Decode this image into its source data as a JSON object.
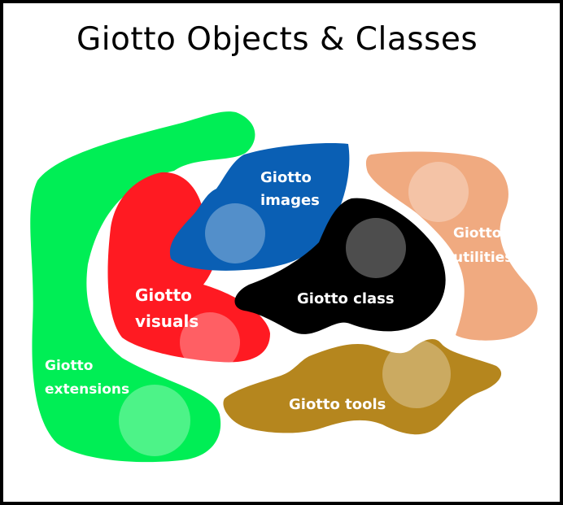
{
  "title": "Giotto Objects & Classes",
  "regions": {
    "extensions": {
      "line1": "Giotto",
      "line2": "extensions",
      "color": "#00ee55"
    },
    "visuals": {
      "line1": "Giotto",
      "line2": "visuals",
      "color": "#ff1a22"
    },
    "images": {
      "line1": "Giotto",
      "line2": "images",
      "color": "#0a5fb4"
    },
    "class": {
      "line1": "Giotto class",
      "color": "#000000"
    },
    "utilities": {
      "line1": "Giotto",
      "line2": "utilities",
      "color": "#f0aa80"
    },
    "tools": {
      "line1": "Giotto tools",
      "color": "#b5861e"
    }
  }
}
